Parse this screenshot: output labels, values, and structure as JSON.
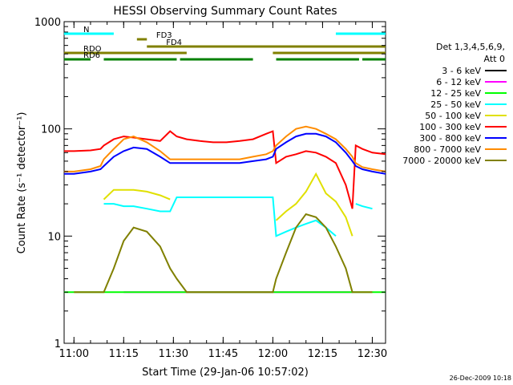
{
  "chart_data": {
    "type": "line",
    "title": "HESSI Observing Summary Count Rates",
    "xlabel": "Start Time (29-Jan-06 10:57:02)",
    "ylabel": "Count Rate (s⁻¹ detector⁻¹)",
    "yscale": "log",
    "ylim": [
      1,
      1000
    ],
    "xlim": [
      "10:57:02",
      "12:34:00"
    ],
    "x_ticks": [
      "11:00",
      "11:15",
      "11:30",
      "11:45",
      "12:00",
      "12:15",
      "12:30"
    ],
    "y_ticks": [
      "1",
      "10",
      "100",
      "1000"
    ],
    "timestamp": "26-Dec-2009 10:18",
    "legend": {
      "title_line1": "Det 1,3,4,5,6,9,",
      "title_line2": "Att 0",
      "placement": "right"
    },
    "x_times": [
      "10:57",
      "11:00",
      "11:05",
      "11:08",
      "11:09",
      "11:12",
      "11:15",
      "11:18",
      "11:22",
      "11:26",
      "11:29",
      "11:31",
      "11:34",
      "11:38",
      "11:42",
      "11:46",
      "11:50",
      "11:54",
      "11:58",
      "12:00",
      "12:01",
      "12:04",
      "12:07",
      "12:10",
      "12:13",
      "12:16",
      "12:19",
      "12:22",
      "12:24",
      "12:25",
      "12:27",
      "12:30",
      "12:34"
    ],
    "series": [
      {
        "name": "3 - 6 keV",
        "color": "#000000",
        "values": [
          null,
          null,
          null,
          null,
          null,
          null,
          null,
          null,
          null,
          null,
          null,
          null,
          null,
          null,
          null,
          null,
          null,
          null,
          null,
          null,
          null,
          null,
          null,
          null,
          null,
          null,
          null,
          null,
          null,
          null,
          null,
          null,
          null
        ]
      },
      {
        "name": "6 - 12 keV",
        "color": "#ff00ff",
        "values": [
          null,
          null,
          null,
          null,
          null,
          null,
          3,
          3,
          3,
          3,
          3,
          3,
          3,
          3,
          3,
          3,
          3,
          3,
          3,
          3,
          3,
          3,
          3,
          3,
          3,
          3,
          3,
          3,
          3,
          null,
          null,
          null,
          null
        ]
      },
      {
        "name": "12 - 25 keV",
        "color": "#00ff00",
        "values": [
          3,
          3,
          3,
          3,
          3,
          3,
          3,
          3,
          3,
          3,
          3,
          3,
          3,
          3,
          3,
          3,
          3,
          3,
          3,
          3,
          3,
          3,
          3,
          3,
          3,
          3,
          3,
          3,
          3,
          3,
          3,
          3,
          3
        ]
      },
      {
        "name": "25 - 50 keV",
        "color": "#00ffff",
        "values": [
          null,
          null,
          null,
          null,
          20,
          20,
          19,
          19,
          18,
          17,
          17,
          23,
          23,
          23,
          23,
          23,
          23,
          23,
          23,
          23,
          10,
          11,
          12,
          13,
          14,
          12,
          10,
          null,
          null,
          20,
          19,
          18,
          null
        ]
      },
      {
        "name": "50 - 100 keV",
        "color": "#e0e000",
        "values": [
          null,
          null,
          null,
          null,
          22,
          27,
          27,
          27,
          26,
          24,
          22,
          null,
          null,
          null,
          null,
          null,
          null,
          null,
          null,
          null,
          14,
          17,
          20,
          26,
          38,
          25,
          21,
          15,
          10,
          null,
          null,
          null,
          null
        ]
      },
      {
        "name": "100 - 300 keV",
        "color": "#ff0000",
        "values": [
          62,
          62,
          63,
          65,
          70,
          80,
          85,
          83,
          80,
          77,
          95,
          85,
          80,
          77,
          75,
          75,
          77,
          80,
          90,
          95,
          48,
          55,
          58,
          62,
          60,
          55,
          48,
          30,
          18,
          70,
          65,
          60,
          58
        ]
      },
      {
        "name": "300 - 800 keV",
        "color": "#0000ff",
        "values": [
          38,
          38,
          40,
          42,
          45,
          55,
          62,
          67,
          65,
          55,
          48,
          48,
          48,
          48,
          48,
          48,
          48,
          50,
          52,
          55,
          65,
          75,
          85,
          90,
          90,
          85,
          75,
          60,
          50,
          45,
          42,
          40,
          38
        ]
      },
      {
        "name": "800 - 7000 keV",
        "color": "#ff8c00",
        "values": [
          40,
          40,
          42,
          45,
          52,
          65,
          80,
          85,
          75,
          62,
          52,
          52,
          52,
          52,
          52,
          52,
          52,
          55,
          58,
          62,
          70,
          85,
          100,
          105,
          100,
          90,
          80,
          65,
          55,
          48,
          44,
          42,
          40
        ]
      },
      {
        "name": "7000 - 20000 keV",
        "color": "#808000",
        "values": [
          null,
          3,
          3,
          3,
          3,
          5,
          9,
          12,
          11,
          8,
          5,
          4,
          3,
          3,
          3,
          3,
          3,
          3,
          3,
          3,
          4,
          7,
          12,
          16,
          15,
          12,
          8,
          5,
          3,
          3,
          3,
          3,
          null
        ]
      }
    ],
    "flags": [
      {
        "name": "N",
        "segments": [
          [
            "10:57",
            "11:12"
          ],
          [
            "12:19",
            "12:34"
          ]
        ]
      },
      {
        "name": "FD3",
        "segments": [
          [
            "11:19",
            "11:22"
          ]
        ]
      },
      {
        "name": "FD4",
        "segments": [
          [
            "11:22",
            "12:34"
          ]
        ]
      },
      {
        "name": "RDO",
        "segments": [
          [
            "10:57",
            "11:34"
          ],
          [
            "12:00",
            "12:34"
          ]
        ]
      },
      {
        "name": "RD6",
        "segments": [
          [
            "10:57",
            "11:05"
          ],
          [
            "11:09",
            "11:31"
          ],
          [
            "11:32",
            "11:54"
          ],
          [
            "12:01",
            "12:26"
          ],
          [
            "12:27",
            "12:34"
          ]
        ]
      }
    ]
  }
}
